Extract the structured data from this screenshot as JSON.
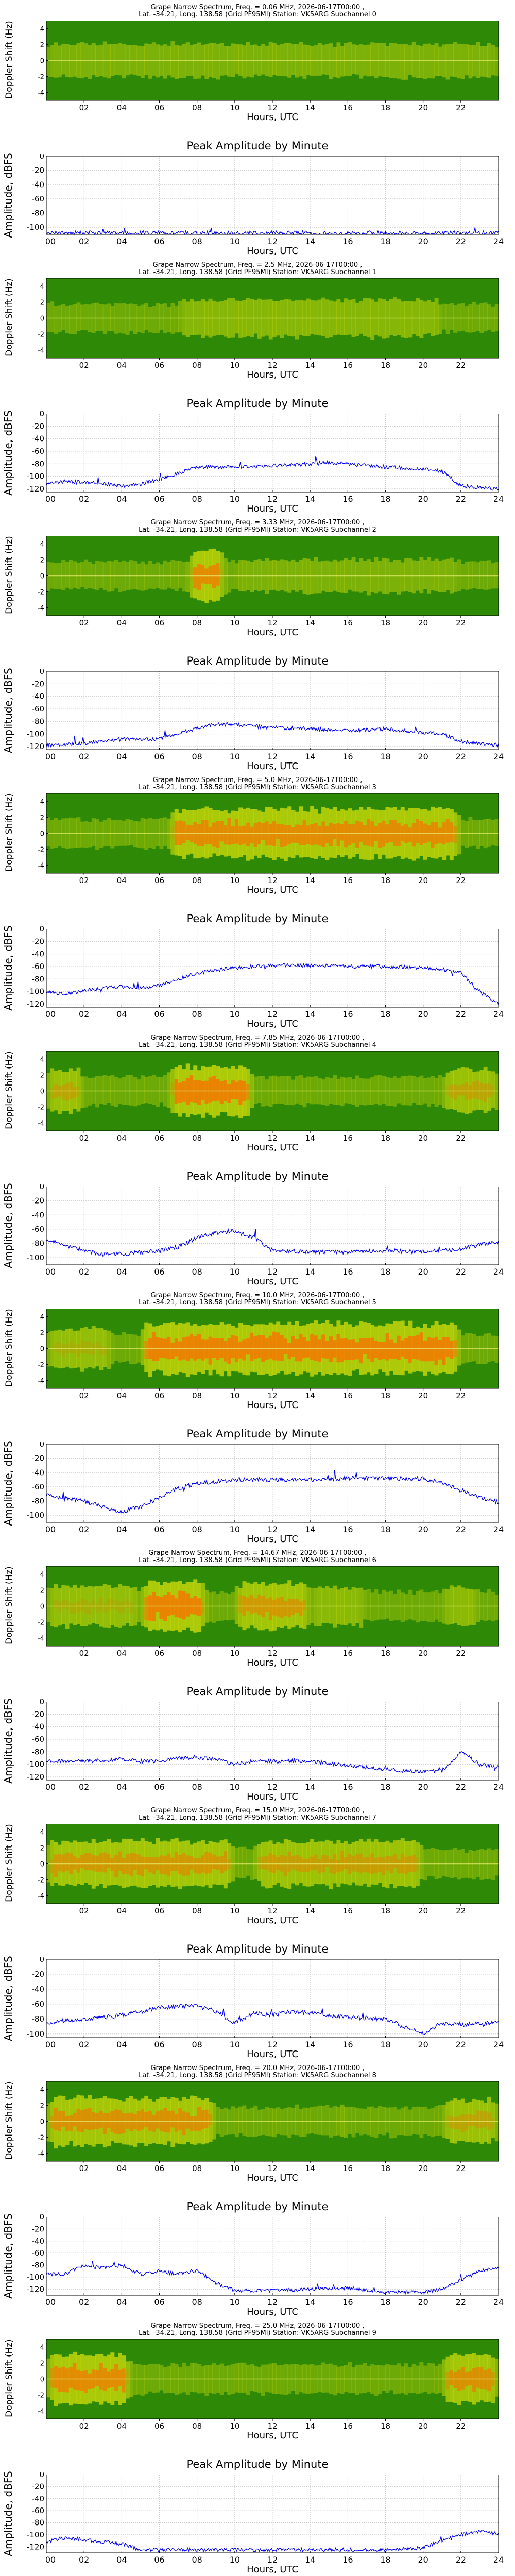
{
  "x_axis_label": "Hours, UTC",
  "spec_ylabel": "Doppler Shift (Hz)",
  "amp_ylabel": "Amplitude, dBFS",
  "amp_title": "Peak Amplitude by Minute",
  "spec_xticks": [
    "02",
    "04",
    "06",
    "08",
    "10",
    "12",
    "14",
    "16",
    "18",
    "20",
    "22"
  ],
  "amp_xticks": [
    "00",
    "02",
    "04",
    "06",
    "08",
    "10",
    "12",
    "14",
    "16",
    "18",
    "20",
    "22",
    "24"
  ],
  "spec_yticks": [
    "4",
    "2",
    "0",
    "-2",
    "-4"
  ],
  "colors": {
    "trace": "#0000ee",
    "spec_dark": "#2e8a06",
    "spec_mid": "#c8d80a",
    "spec_hot": "#ff6a00",
    "grid": "#cccccc"
  },
  "panels": [
    {
      "title1": "Grape Narrow Spectrum, Freq. = 0.06 MHz, 2026-06-17T00:00 ,",
      "title2": "Lat. -34.21, Long. 138.58 (Grid PF95MI) Station: VK5ARG Subchannel 0",
      "amp_yticks": [
        "0",
        "-20",
        "-40",
        "-60",
        "-80",
        "-100"
      ]
    },
    {
      "title1": "Grape Narrow Spectrum, Freq. = 2.5 MHz, 2026-06-17T00:00 ,",
      "title2": "Lat. -34.21, Long. 138.58 (Grid PF95MI) Station: VK5ARG Subchannel 1",
      "amp_yticks": [
        "0",
        "-20",
        "-40",
        "-60",
        "-80",
        "-100",
        "-120"
      ]
    },
    {
      "title1": "Grape Narrow Spectrum, Freq. = 3.33 MHz, 2026-06-17T00:00 ,",
      "title2": "Lat. -34.21, Long. 138.58 (Grid PF95MI) Station: VK5ARG Subchannel 2",
      "amp_yticks": [
        "0",
        "-20",
        "-40",
        "-60",
        "-80",
        "-100",
        "-120"
      ]
    },
    {
      "title1": "Grape Narrow Spectrum, Freq. = 5.0 MHz, 2026-06-17T00:00 ,",
      "title2": "Lat. -34.21, Long. 138.58 (Grid PF95MI) Station: VK5ARG Subchannel 3",
      "amp_yticks": [
        "0",
        "-20",
        "-40",
        "-60",
        "-80",
        "-100",
        "-120"
      ]
    },
    {
      "title1": "Grape Narrow Spectrum, Freq. = 7.85 MHz, 2026-06-17T00:00 ,",
      "title2": "Lat. -34.21, Long. 138.58 (Grid PF95MI) Station: VK5ARG Subchannel 4",
      "amp_yticks": [
        "0",
        "-20",
        "-40",
        "-60",
        "-80",
        "-100"
      ]
    },
    {
      "title1": "Grape Narrow Spectrum, Freq. = 10.0 MHz, 2026-06-17T00:00 ,",
      "title2": "Lat. -34.21, Long. 138.58 (Grid PF95MI) Station: VK5ARG Subchannel 5",
      "amp_yticks": [
        "0",
        "-20",
        "-40",
        "-60",
        "-80",
        "-100"
      ]
    },
    {
      "title1": "Grape Narrow Spectrum, Freq. = 14.67 MHz, 2026-06-17T00:00 ,",
      "title2": "Lat. -34.21, Long. 138.58 (Grid PF95MI) Station: VK5ARG Subchannel 6",
      "amp_yticks": [
        "0",
        "-20",
        "-40",
        "-60",
        "-80",
        "-100",
        "-120"
      ]
    },
    {
      "title1": "Grape Narrow Spectrum, Freq. = 15.0 MHz, 2026-06-17T00:00 ,",
      "title2": "Lat. -34.21, Long. 138.58 (Grid PF95MI) Station: VK5ARG Subchannel 7",
      "amp_yticks": [
        "0",
        "-20",
        "-40",
        "-60",
        "-80",
        "-100"
      ]
    },
    {
      "title1": "Grape Narrow Spectrum, Freq. = 20.0 MHz, 2026-06-17T00:00 ,",
      "title2": "Lat. -34.21, Long. 138.58 (Grid PF95MI) Station: VK5ARG Subchannel 8",
      "amp_yticks": [
        "0",
        "-20",
        "-40",
        "-60",
        "-80",
        "-100",
        "-120"
      ]
    },
    {
      "title1": "Grape Narrow Spectrum, Freq. = 25.0 MHz, 2026-06-17T00:00 ,",
      "title2": "Lat. -34.21, Long. 138.58 (Grid PF95MI) Station: VK5ARG Subchannel 9",
      "amp_yticks": [
        "0",
        "-20",
        "-40",
        "-60",
        "-80",
        "-100",
        "-120"
      ]
    }
  ],
  "chart_data": [
    {
      "type": "heatmap",
      "subchannel": 0,
      "title": "Grape Narrow Spectrum, Freq. = 0.06 MHz, 2026-06-17T00:00 ,",
      "xlabel": "Hours, UTC",
      "ylabel": "Doppler Shift (Hz)",
      "xlim": [
        0,
        24
      ],
      "ylim": [
        -5,
        5
      ],
      "band_center_hz": 0,
      "activity": [
        [
          0,
          24,
          0.3
        ]
      ]
    },
    {
      "type": "line",
      "subchannel": 0,
      "title": "Peak Amplitude by Minute",
      "xlabel": "Hours, UTC",
      "ylabel": "Amplitude, dBFS",
      "xlim": [
        0,
        24
      ],
      "ylim": [
        -110,
        0
      ],
      "x": [
        0,
        2,
        4,
        6,
        8,
        10,
        12,
        14,
        16,
        18,
        20,
        22,
        24
      ],
      "y": [
        -108,
        -108,
        -108,
        -108,
        -108,
        -108,
        -108,
        -108,
        -108,
        -108,
        -108,
        -108,
        -108
      ]
    },
    {
      "type": "heatmap",
      "subchannel": 1,
      "title": "Grape Narrow Spectrum, Freq. = 2.5 MHz, 2026-06-17T00:00 ,",
      "xlabel": "Hours, UTC",
      "ylabel": "Doppler Shift (Hz)",
      "xlim": [
        0,
        24
      ],
      "ylim": [
        -5,
        5
      ],
      "band_center_hz": 0,
      "activity": [
        [
          7,
          21,
          0.45
        ]
      ]
    },
    {
      "type": "line",
      "subchannel": 1,
      "title": "Peak Amplitude by Minute",
      "xlabel": "Hours, UTC",
      "ylabel": "Amplitude, dBFS",
      "xlim": [
        0,
        24
      ],
      "ylim": [
        -125,
        0
      ],
      "x": [
        0,
        1,
        2,
        3,
        4,
        5,
        6,
        7,
        8,
        10,
        12,
        14,
        15,
        16,
        18,
        20,
        21,
        22,
        23,
        24
      ],
      "y": [
        -112,
        -108,
        -110,
        -112,
        -115,
        -112,
        -105,
        -95,
        -85,
        -85,
        -83,
        -80,
        -78,
        -80,
        -85,
        -88,
        -92,
        -115,
        -118,
        -120
      ]
    },
    {
      "type": "heatmap",
      "subchannel": 2,
      "title": "Grape Narrow Spectrum, Freq. = 3.33 MHz, 2026-06-17T00:00 ,",
      "xlabel": "Hours, UTC",
      "ylabel": "Doppler Shift (Hz)",
      "xlim": [
        0,
        24
      ],
      "ylim": [
        -5,
        5
      ],
      "band_center_hz": 0,
      "activity": [
        [
          7.5,
          9.5,
          0.9
        ],
        [
          10,
          22,
          0.3
        ]
      ]
    },
    {
      "type": "line",
      "subchannel": 2,
      "title": "Peak Amplitude by Minute",
      "xlabel": "Hours, UTC",
      "ylabel": "Amplitude, dBFS",
      "xlim": [
        0,
        24
      ],
      "ylim": [
        -125,
        0
      ],
      "x": [
        0,
        2,
        4,
        6,
        7,
        8,
        9,
        10,
        12,
        14,
        16,
        18,
        20,
        21,
        22,
        24
      ],
      "y": [
        -118,
        -115,
        -108,
        -108,
        -100,
        -90,
        -85,
        -85,
        -90,
        -92,
        -95,
        -92,
        -98,
        -100,
        -112,
        -118
      ]
    },
    {
      "type": "heatmap",
      "subchannel": 3,
      "title": "Grape Narrow Spectrum, Freq. = 5.0 MHz, 2026-06-17T00:00 ,",
      "xlabel": "Hours, UTC",
      "ylabel": "Doppler Shift (Hz)",
      "xlim": [
        0,
        24
      ],
      "ylim": [
        -5,
        5
      ],
      "band_center_hz": 0,
      "activity": [
        [
          6.5,
          22,
          0.9
        ]
      ]
    },
    {
      "type": "line",
      "subchannel": 3,
      "title": "Peak Amplitude by Minute",
      "xlabel": "Hours, UTC",
      "ylabel": "Amplitude, dBFS",
      "xlim": [
        0,
        24
      ],
      "ylim": [
        -125,
        0
      ],
      "x": [
        0,
        1,
        2,
        3,
        4,
        5,
        6,
        7,
        8,
        10,
        12,
        14,
        16,
        18,
        20,
        21,
        22,
        23,
        24
      ],
      "y": [
        -100,
        -105,
        -98,
        -95,
        -92,
        -95,
        -90,
        -80,
        -70,
        -62,
        -58,
        -58,
        -60,
        -60,
        -62,
        -64,
        -70,
        -100,
        -120
      ]
    },
    {
      "type": "heatmap",
      "subchannel": 4,
      "title": "Grape Narrow Spectrum, Freq. = 7.85 MHz, 2026-06-17T00:00 ,",
      "xlabel": "Hours, UTC",
      "ylabel": "Doppler Shift (Hz)",
      "xlim": [
        0,
        24
      ],
      "ylim": [
        -5,
        5
      ],
      "band_center_hz": 0,
      "activity": [
        [
          0,
          2,
          0.7
        ],
        [
          6.5,
          11,
          0.95
        ],
        [
          21,
          24,
          0.7
        ]
      ]
    },
    {
      "type": "line",
      "subchannel": 4,
      "title": "Peak Amplitude by Minute",
      "xlabel": "Hours, UTC",
      "ylabel": "Amplitude, dBFS",
      "xlim": [
        0,
        24
      ],
      "ylim": [
        -110,
        0
      ],
      "x": [
        0,
        1,
        2,
        3,
        4,
        5,
        6,
        7,
        8,
        9,
        10,
        11,
        12,
        14,
        16,
        18,
        20,
        22,
        23,
        24
      ],
      "y": [
        -75,
        -82,
        -90,
        -95,
        -95,
        -92,
        -90,
        -85,
        -72,
        -65,
        -62,
        -72,
        -90,
        -92,
        -92,
        -90,
        -92,
        -88,
        -82,
        -78
      ]
    },
    {
      "type": "heatmap",
      "subchannel": 5,
      "title": "Grape Narrow Spectrum, Freq. = 10.0 MHz, 2026-06-17T00:00 ,",
      "xlabel": "Hours, UTC",
      "ylabel": "Doppler Shift (Hz)",
      "xlim": [
        0,
        24
      ],
      "ylim": [
        -5,
        5
      ],
      "band_center_hz": 0,
      "activity": [
        [
          0,
          3.5,
          0.6
        ],
        [
          5,
          22,
          0.95
        ]
      ]
    },
    {
      "type": "line",
      "subchannel": 5,
      "title": "Peak Amplitude by Minute",
      "xlabel": "Hours, UTC",
      "ylabel": "Amplitude, dBFS",
      "xlim": [
        0,
        24
      ],
      "ylim": [
        -110,
        0
      ],
      "x": [
        0,
        1,
        2,
        3,
        4,
        5,
        6,
        7,
        8,
        10,
        12,
        14,
        16,
        18,
        20,
        21,
        22,
        23,
        24
      ],
      "y": [
        -72,
        -75,
        -80,
        -88,
        -95,
        -88,
        -75,
        -62,
        -55,
        -50,
        -50,
        -50,
        -48,
        -48,
        -48,
        -55,
        -65,
        -75,
        -82
      ]
    },
    {
      "type": "heatmap",
      "subchannel": 6,
      "title": "Grape Narrow Spectrum, Freq. = 14.67 MHz, 2026-06-17T00:00 ,",
      "xlabel": "Hours, UTC",
      "ylabel": "Doppler Shift (Hz)",
      "xlim": [
        0,
        24
      ],
      "ylim": [
        -5,
        5
      ],
      "band_center_hz": 0,
      "activity": [
        [
          0,
          5,
          0.6
        ],
        [
          5,
          8.5,
          0.95
        ],
        [
          10,
          14,
          0.8
        ],
        [
          14,
          17,
          0.5
        ],
        [
          21,
          23,
          0.5
        ]
      ]
    },
    {
      "type": "line",
      "subchannel": 6,
      "title": "Peak Amplitude by Minute",
      "xlabel": "Hours, UTC",
      "ylabel": "Amplitude, dBFS",
      "xlim": [
        0,
        24
      ],
      "ylim": [
        -125,
        0
      ],
      "x": [
        0,
        2,
        4,
        5,
        6,
        7,
        8,
        9,
        10,
        11,
        12,
        14,
        16,
        18,
        20,
        21,
        22,
        23,
        24
      ],
      "y": [
        -95,
        -95,
        -92,
        -95,
        -95,
        -90,
        -90,
        -92,
        -100,
        -95,
        -95,
        -95,
        -102,
        -108,
        -112,
        -110,
        -80,
        -100,
        -105
      ]
    },
    {
      "type": "heatmap",
      "subchannel": 7,
      "title": "Grape Narrow Spectrum, Freq. = 15.0 MHz, 2026-06-17T00:00 ,",
      "xlabel": "Hours, UTC",
      "ylabel": "Doppler Shift (Hz)",
      "xlim": [
        0,
        24
      ],
      "ylim": [
        -5,
        5
      ],
      "band_center_hz": 0,
      "activity": [
        [
          0,
          10,
          0.8
        ],
        [
          11,
          20,
          0.75
        ]
      ]
    },
    {
      "type": "line",
      "subchannel": 7,
      "title": "Peak Amplitude by Minute",
      "xlabel": "Hours, UTC",
      "ylabel": "Amplitude, dBFS",
      "xlim": [
        0,
        24
      ],
      "ylim": [
        -105,
        0
      ],
      "x": [
        0,
        2,
        4,
        6,
        8,
        9,
        10,
        11,
        12,
        13,
        14,
        16,
        18,
        19,
        20,
        21,
        22,
        24
      ],
      "y": [
        -85,
        -80,
        -75,
        -65,
        -62,
        -70,
        -85,
        -72,
        -75,
        -70,
        -72,
        -78,
        -80,
        -90,
        -100,
        -85,
        -88,
        -85
      ]
    },
    {
      "type": "heatmap",
      "subchannel": 8,
      "title": "Grape Narrow Spectrum, Freq. = 20.0 MHz, 2026-06-17T00:00 ,",
      "xlabel": "Hours, UTC",
      "ylabel": "Doppler Shift (Hz)",
      "xlim": [
        0,
        24
      ],
      "ylim": [
        -5,
        5
      ],
      "band_center_hz": 0,
      "activity": [
        [
          0,
          9,
          0.85
        ],
        [
          15.5,
          16,
          0.4
        ],
        [
          21,
          24,
          0.7
        ]
      ]
    },
    {
      "type": "line",
      "subchannel": 8,
      "title": "Peak Amplitude by Minute",
      "xlabel": "Hours, UTC",
      "ylabel": "Amplitude, dBFS",
      "xlim": [
        0,
        24
      ],
      "ylim": [
        -130,
        0
      ],
      "x": [
        0,
        1,
        2,
        3,
        4,
        5,
        6,
        7,
        8,
        9,
        10,
        12,
        14,
        16,
        18,
        20,
        21,
        22,
        23,
        24
      ],
      "y": [
        -95,
        -95,
        -80,
        -85,
        -80,
        -95,
        -90,
        -95,
        -88,
        -110,
        -122,
        -122,
        -120,
        -118,
        -125,
        -125,
        -120,
        -105,
        -90,
        -85
      ]
    },
    {
      "type": "heatmap",
      "subchannel": 9,
      "title": "Grape Narrow Spectrum, Freq. = 25.0 MHz, 2026-06-17T00:00 ,",
      "xlabel": "Hours, UTC",
      "ylabel": "Doppler Shift (Hz)",
      "xlim": [
        0,
        24
      ],
      "ylim": [
        -5,
        5
      ],
      "band_center_hz": 0,
      "activity": [
        [
          0,
          4.5,
          0.9
        ],
        [
          21,
          24,
          0.85
        ]
      ]
    },
    {
      "type": "line",
      "subchannel": 9,
      "title": "Peak Amplitude by Minute",
      "xlabel": "Hours, UTC",
      "ylabel": "Amplitude, dBFS",
      "xlim": [
        0,
        24
      ],
      "ylim": [
        -130,
        0
      ],
      "x": [
        0,
        1,
        2,
        3,
        4,
        5,
        6,
        8,
        10,
        12,
        14,
        16,
        18,
        20,
        21,
        22,
        23,
        24
      ],
      "y": [
        -112,
        -105,
        -108,
        -112,
        -115,
        -125,
        -125,
        -125,
        -125,
        -125,
        -125,
        -125,
        -125,
        -122,
        -110,
        -100,
        -95,
        -98
      ]
    }
  ]
}
